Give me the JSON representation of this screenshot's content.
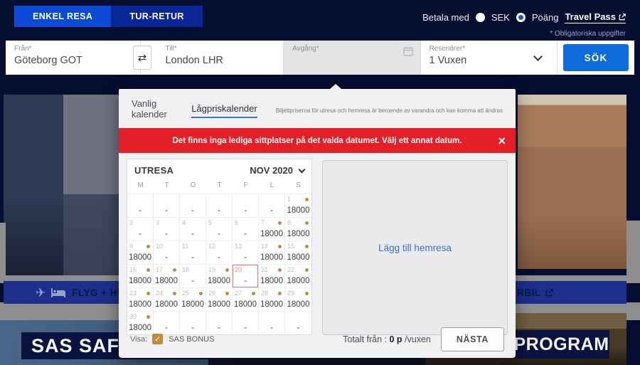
{
  "header": {
    "tabs": [
      {
        "label": "ENKEL RESA",
        "active": true
      },
      {
        "label": "TUR-RETUR",
        "active": false
      }
    ],
    "pay_with_label": "Betala med",
    "pay_options": [
      {
        "label": "SEK",
        "selected": false
      },
      {
        "label": "Poäng",
        "selected": true
      }
    ],
    "travel_pass_label": "Travel Pass",
    "required_note": "* Obligatoriska uppgifter"
  },
  "search_form": {
    "from": {
      "label": "Från*",
      "value": "Göteborg GOT"
    },
    "to": {
      "label": "Till*",
      "value": "London LHR"
    },
    "swap_icon": "⇄",
    "departure": {
      "label": "Avgång*"
    },
    "travelers": {
      "label": "Resenärer*",
      "value": "1 Vuxen"
    },
    "search_label": "SÖK"
  },
  "modal": {
    "tabs": [
      {
        "label": "Vanlig kalender",
        "active": false
      },
      {
        "label": "Lågpriskalender",
        "active": true
      }
    ],
    "info_text": "Biljettpriserna för utresa och hemresa är beroende av varandra och kan komma att ändras",
    "error": {
      "message": "Det finns inga lediga sittplatser på det valda datumet. Välj ett annat datum.",
      "close": "×"
    },
    "calendar": {
      "direction_label": "UTRESA",
      "month_label": "NOV 2020",
      "day_headers": [
        "M",
        "T",
        "O",
        "T",
        "F",
        "L",
        "S"
      ],
      "cells": [
        {
          "day": "",
          "price": "-",
          "dot": false,
          "selected": false
        },
        {
          "day": "",
          "price": "-",
          "dot": false,
          "selected": false
        },
        {
          "day": "",
          "price": "-",
          "dot": false,
          "selected": false
        },
        {
          "day": "",
          "price": "-",
          "dot": false,
          "selected": false
        },
        {
          "day": "",
          "price": "-",
          "dot": false,
          "selected": false
        },
        {
          "day": "",
          "price": "-",
          "dot": false,
          "selected": false
        },
        {
          "day": "1",
          "price": "18000",
          "dot": true,
          "selected": false
        },
        {
          "day": "2",
          "price": "-",
          "dot": false,
          "selected": false
        },
        {
          "day": "3",
          "price": "-",
          "dot": false,
          "selected": false
        },
        {
          "day": "4",
          "price": "-",
          "dot": false,
          "selected": false
        },
        {
          "day": "5",
          "price": "-",
          "dot": false,
          "selected": false
        },
        {
          "day": "6",
          "price": "-",
          "dot": false,
          "selected": false
        },
        {
          "day": "7",
          "price": "18000",
          "dot": true,
          "selected": false
        },
        {
          "day": "8",
          "price": "18000",
          "dot": true,
          "selected": false
        },
        {
          "day": "9",
          "price": "18000",
          "dot": true,
          "selected": false
        },
        {
          "day": "10",
          "price": "-",
          "dot": false,
          "selected": false
        },
        {
          "day": "11",
          "price": "-",
          "dot": false,
          "selected": false
        },
        {
          "day": "12",
          "price": "-",
          "dot": false,
          "selected": false
        },
        {
          "day": "13",
          "price": "-",
          "dot": false,
          "selected": false
        },
        {
          "day": "14",
          "price": "18000",
          "dot": true,
          "selected": false
        },
        {
          "day": "15",
          "price": "18000",
          "dot": true,
          "selected": false
        },
        {
          "day": "16",
          "price": "18000",
          "dot": true,
          "selected": false
        },
        {
          "day": "17",
          "price": "18000",
          "dot": true,
          "selected": false
        },
        {
          "day": "18",
          "price": "-",
          "dot": false,
          "selected": false
        },
        {
          "day": "19",
          "price": "18000",
          "dot": true,
          "selected": false
        },
        {
          "day": "20",
          "price": "-",
          "dot": false,
          "selected": true
        },
        {
          "day": "21",
          "price": "18000",
          "dot": true,
          "selected": false
        },
        {
          "day": "22",
          "price": "18000",
          "dot": true,
          "selected": false
        },
        {
          "day": "23",
          "price": "18000",
          "dot": true,
          "selected": false
        },
        {
          "day": "24",
          "price": "18000",
          "dot": true,
          "selected": false
        },
        {
          "day": "25",
          "price": "18000",
          "dot": true,
          "selected": false
        },
        {
          "day": "26",
          "price": "18000",
          "dot": true,
          "selected": false
        },
        {
          "day": "27",
          "price": "18000",
          "dot": true,
          "selected": false
        },
        {
          "day": "28",
          "price": "18000",
          "dot": true,
          "selected": false
        },
        {
          "day": "29",
          "price": "18000",
          "dot": true,
          "selected": false
        },
        {
          "day": "30",
          "price": "18000",
          "dot": true,
          "selected": false
        },
        {
          "day": "",
          "price": "-",
          "dot": false,
          "selected": false
        },
        {
          "day": "",
          "price": "-",
          "dot": false,
          "selected": false
        },
        {
          "day": "",
          "price": "-",
          "dot": false,
          "selected": false
        },
        {
          "day": "",
          "price": "-",
          "dot": false,
          "selected": false
        },
        {
          "day": "",
          "price": "-",
          "dot": false,
          "selected": false
        },
        {
          "day": "",
          "price": "-",
          "dot": false,
          "selected": false
        }
      ]
    },
    "add_return_label": "Lägg till hemresa",
    "footer": {
      "show_label": "Visa:",
      "checkbox_glyph": "✓",
      "bonus_label": "SAS BONUS",
      "total_prefix": "Totalt från : ",
      "total_value": "0 p",
      "total_suffix": " /vuxen",
      "next_label": "NÄSTA"
    }
  },
  "background": {
    "left_banner_label": "FLYG + HOTELL",
    "right_banner_label": "RBIL",
    "bottom_left_text": "SAS SAFE",
    "bottom_right_text": "PROGRAM",
    "plane_glyph": "✈"
  },
  "colors": {
    "page_navy": "#050d30",
    "active_tab_blue": "#0b49d6",
    "inactive_tab_blue": "#0a2596",
    "search_button_blue": "#0d6cd9",
    "error_red": "#e41f28",
    "price_dot_tan": "#c28a3e",
    "link_blue": "#3273d8",
    "banner_blue": "#1d2f8c"
  }
}
